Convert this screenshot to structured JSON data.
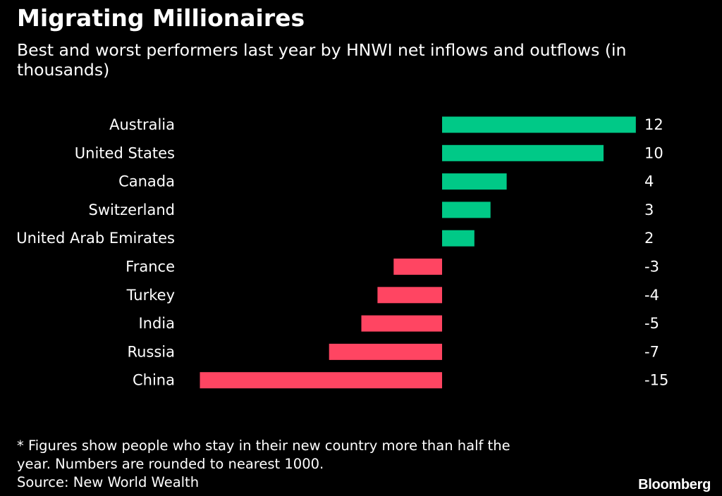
{
  "title": "Migrating Millionaires",
  "subtitle": "Best and worst performers last year by HNWI net inflows and outflows (in thousands)",
  "footnote": {
    "line1": "* Figures show people who stay in their new country more than half the",
    "line2": "year. Numbers are rounded to nearest 1000.",
    "source": "Source: New World Wealth"
  },
  "brand": "Bloomberg",
  "colors": {
    "background": "#000000",
    "positive": "#00C987",
    "negative": "#FF4562",
    "text": "#FFFFFF"
  },
  "chart_data": {
    "type": "bar",
    "orientation": "horizontal",
    "title": "Migrating Millionaires",
    "subtitle": "Best and worst performers last year by HNWI net inflows and outflows (in thousands)",
    "categories": [
      "Australia",
      "United States",
      "Canada",
      "Switzerland",
      "United Arab Emirates",
      "France",
      "Turkey",
      "India",
      "Russia",
      "China"
    ],
    "values": [
      12,
      10,
      4,
      3,
      2,
      -3,
      -4,
      -5,
      -7,
      -15
    ],
    "value_labels": [
      "12",
      "10",
      "4",
      "3",
      "2",
      "-3",
      "-4",
      "-5",
      "-7",
      "-15"
    ],
    "xlim": [
      -15,
      12
    ],
    "grid": false,
    "legend": "none"
  }
}
